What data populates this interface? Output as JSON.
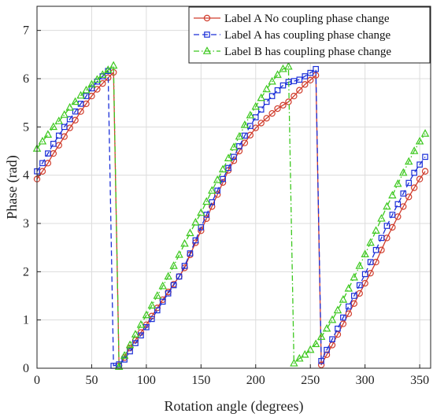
{
  "chart_data": {
    "type": "line",
    "xlabel": "Rotation angle (degrees)",
    "ylabel": "Phase (rad)",
    "xlim": [
      0,
      360
    ],
    "ylim": [
      0,
      7.5
    ],
    "xticks": [
      "0",
      "50",
      "100",
      "150",
      "200",
      "250",
      "300",
      "350"
    ],
    "yticks": [
      "0",
      "1",
      "2",
      "3",
      "4",
      "5",
      "6",
      "7"
    ],
    "grid": true,
    "legend_position": "top-right",
    "series": [
      {
        "name": "Label A No coupling phase change",
        "color": "#d03c2c",
        "line_style": "solid",
        "marker": "circle",
        "points": [
          [
            0,
            3.92
          ],
          [
            5,
            4.08
          ],
          [
            10,
            4.25
          ],
          [
            15,
            4.45
          ],
          [
            20,
            4.62
          ],
          [
            25,
            4.8
          ],
          [
            30,
            4.98
          ],
          [
            35,
            5.14
          ],
          [
            40,
            5.32
          ],
          [
            45,
            5.48
          ],
          [
            50,
            5.64
          ],
          [
            55,
            5.78
          ],
          [
            60,
            5.9
          ],
          [
            65,
            6.02
          ],
          [
            70,
            6.13
          ],
          [
            75,
            0.05
          ],
          [
            80,
            0.22
          ],
          [
            85,
            0.42
          ],
          [
            90,
            0.58
          ],
          [
            95,
            0.74
          ],
          [
            100,
            0.9
          ],
          [
            105,
            1.08
          ],
          [
            110,
            1.25
          ],
          [
            115,
            1.42
          ],
          [
            120,
            1.58
          ],
          [
            125,
            1.74
          ],
          [
            130,
            1.9
          ],
          [
            135,
            2.08
          ],
          [
            140,
            2.35
          ],
          [
            145,
            2.6
          ],
          [
            150,
            2.85
          ],
          [
            155,
            3.1
          ],
          [
            160,
            3.35
          ],
          [
            165,
            3.6
          ],
          [
            170,
            3.85
          ],
          [
            175,
            4.1
          ],
          [
            180,
            4.3
          ],
          [
            185,
            4.5
          ],
          [
            190,
            4.67
          ],
          [
            195,
            4.83
          ],
          [
            200,
            4.98
          ],
          [
            205,
            5.08
          ],
          [
            210,
            5.18
          ],
          [
            215,
            5.28
          ],
          [
            220,
            5.38
          ],
          [
            225,
            5.45
          ],
          [
            230,
            5.52
          ],
          [
            235,
            5.64
          ],
          [
            240,
            5.76
          ],
          [
            245,
            5.88
          ],
          [
            250,
            5.97
          ],
          [
            255,
            6.07
          ],
          [
            260,
            0.07
          ],
          [
            265,
            0.28
          ],
          [
            270,
            0.48
          ],
          [
            275,
            0.7
          ],
          [
            280,
            0.92
          ],
          [
            285,
            1.13
          ],
          [
            290,
            1.34
          ],
          [
            295,
            1.55
          ],
          [
            300,
            1.76
          ],
          [
            305,
            1.97
          ],
          [
            310,
            2.2
          ],
          [
            315,
            2.45
          ],
          [
            320,
            2.7
          ],
          [
            325,
            2.92
          ],
          [
            330,
            3.14
          ],
          [
            335,
            3.35
          ],
          [
            340,
            3.55
          ],
          [
            345,
            3.74
          ],
          [
            350,
            3.92
          ],
          [
            355,
            4.08
          ]
        ]
      },
      {
        "name": "Label A has coupling phase change",
        "color": "#1b2fd8",
        "line_style": "dashed",
        "marker": "square",
        "points": [
          [
            0,
            4.08
          ],
          [
            5,
            4.25
          ],
          [
            10,
            4.45
          ],
          [
            15,
            4.65
          ],
          [
            20,
            4.82
          ],
          [
            25,
            5.0
          ],
          [
            30,
            5.16
          ],
          [
            35,
            5.32
          ],
          [
            40,
            5.48
          ],
          [
            45,
            5.64
          ],
          [
            50,
            5.8
          ],
          [
            55,
            5.94
          ],
          [
            60,
            6.05
          ],
          [
            65,
            6.16
          ],
          [
            70,
            0.05
          ],
          [
            75,
            0.08
          ],
          [
            80,
            0.18
          ],
          [
            85,
            0.35
          ],
          [
            90,
            0.52
          ],
          [
            95,
            0.68
          ],
          [
            100,
            0.85
          ],
          [
            105,
            1.02
          ],
          [
            110,
            1.2
          ],
          [
            115,
            1.38
          ],
          [
            120,
            1.55
          ],
          [
            125,
            1.72
          ],
          [
            130,
            1.9
          ],
          [
            135,
            2.12
          ],
          [
            140,
            2.38
          ],
          [
            145,
            2.65
          ],
          [
            150,
            2.92
          ],
          [
            155,
            3.18
          ],
          [
            160,
            3.44
          ],
          [
            165,
            3.68
          ],
          [
            170,
            3.92
          ],
          [
            175,
            4.15
          ],
          [
            180,
            4.38
          ],
          [
            185,
            4.6
          ],
          [
            190,
            4.82
          ],
          [
            195,
            5.02
          ],
          [
            200,
            5.2
          ],
          [
            205,
            5.36
          ],
          [
            210,
            5.52
          ],
          [
            215,
            5.64
          ],
          [
            220,
            5.76
          ],
          [
            225,
            5.86
          ],
          [
            230,
            5.93
          ],
          [
            235,
            5.95
          ],
          [
            240,
            5.98
          ],
          [
            245,
            6.05
          ],
          [
            250,
            6.12
          ],
          [
            255,
            6.2
          ],
          [
            260,
            0.15
          ],
          [
            265,
            0.38
          ],
          [
            270,
            0.6
          ],
          [
            275,
            0.82
          ],
          [
            280,
            1.05
          ],
          [
            285,
            1.28
          ],
          [
            290,
            1.5
          ],
          [
            295,
            1.72
          ],
          [
            300,
            1.95
          ],
          [
            305,
            2.2
          ],
          [
            310,
            2.45
          ],
          [
            315,
            2.7
          ],
          [
            320,
            2.95
          ],
          [
            325,
            3.18
          ],
          [
            330,
            3.4
          ],
          [
            335,
            3.62
          ],
          [
            340,
            3.84
          ],
          [
            345,
            4.05
          ],
          [
            350,
            4.22
          ],
          [
            355,
            4.38
          ]
        ]
      },
      {
        "name": "Label B has coupling phase change",
        "color": "#3cc81e",
        "line_style": "dashdot",
        "marker": "triangle",
        "points": [
          [
            0,
            4.55
          ],
          [
            5,
            4.7
          ],
          [
            10,
            4.84
          ],
          [
            15,
            5.0
          ],
          [
            20,
            5.12
          ],
          [
            25,
            5.25
          ],
          [
            30,
            5.4
          ],
          [
            35,
            5.52
          ],
          [
            40,
            5.65
          ],
          [
            45,
            5.76
          ],
          [
            50,
            5.88
          ],
          [
            55,
            5.98
          ],
          [
            60,
            6.08
          ],
          [
            65,
            6.18
          ],
          [
            70,
            6.27
          ],
          [
            75,
            0.03
          ],
          [
            80,
            0.26
          ],
          [
            85,
            0.48
          ],
          [
            90,
            0.7
          ],
          [
            95,
            0.9
          ],
          [
            100,
            1.1
          ],
          [
            105,
            1.3
          ],
          [
            110,
            1.5
          ],
          [
            115,
            1.7
          ],
          [
            120,
            1.9
          ],
          [
            125,
            2.12
          ],
          [
            130,
            2.35
          ],
          [
            135,
            2.58
          ],
          [
            140,
            2.8
          ],
          [
            145,
            3.02
          ],
          [
            150,
            3.22
          ],
          [
            155,
            3.45
          ],
          [
            160,
            3.68
          ],
          [
            165,
            3.9
          ],
          [
            170,
            4.12
          ],
          [
            175,
            4.35
          ],
          [
            180,
            4.58
          ],
          [
            185,
            4.8
          ],
          [
            190,
            5.04
          ],
          [
            195,
            5.24
          ],
          [
            200,
            5.42
          ],
          [
            205,
            5.6
          ],
          [
            210,
            5.78
          ],
          [
            215,
            5.94
          ],
          [
            220,
            6.08
          ],
          [
            225,
            6.2
          ],
          [
            230,
            6.25
          ],
          [
            235,
            0.1
          ],
          [
            240,
            0.2
          ],
          [
            245,
            0.28
          ],
          [
            250,
            0.38
          ],
          [
            255,
            0.5
          ],
          [
            260,
            0.65
          ],
          [
            265,
            0.82
          ],
          [
            270,
            1.0
          ],
          [
            275,
            1.2
          ],
          [
            280,
            1.42
          ],
          [
            285,
            1.65
          ],
          [
            290,
            1.88
          ],
          [
            295,
            2.12
          ],
          [
            300,
            2.36
          ],
          [
            305,
            2.6
          ],
          [
            310,
            2.85
          ],
          [
            315,
            3.1
          ],
          [
            320,
            3.35
          ],
          [
            325,
            3.58
          ],
          [
            330,
            3.82
          ],
          [
            335,
            4.05
          ],
          [
            340,
            4.28
          ],
          [
            345,
            4.5
          ],
          [
            350,
            4.7
          ],
          [
            355,
            4.86
          ]
        ]
      }
    ]
  }
}
